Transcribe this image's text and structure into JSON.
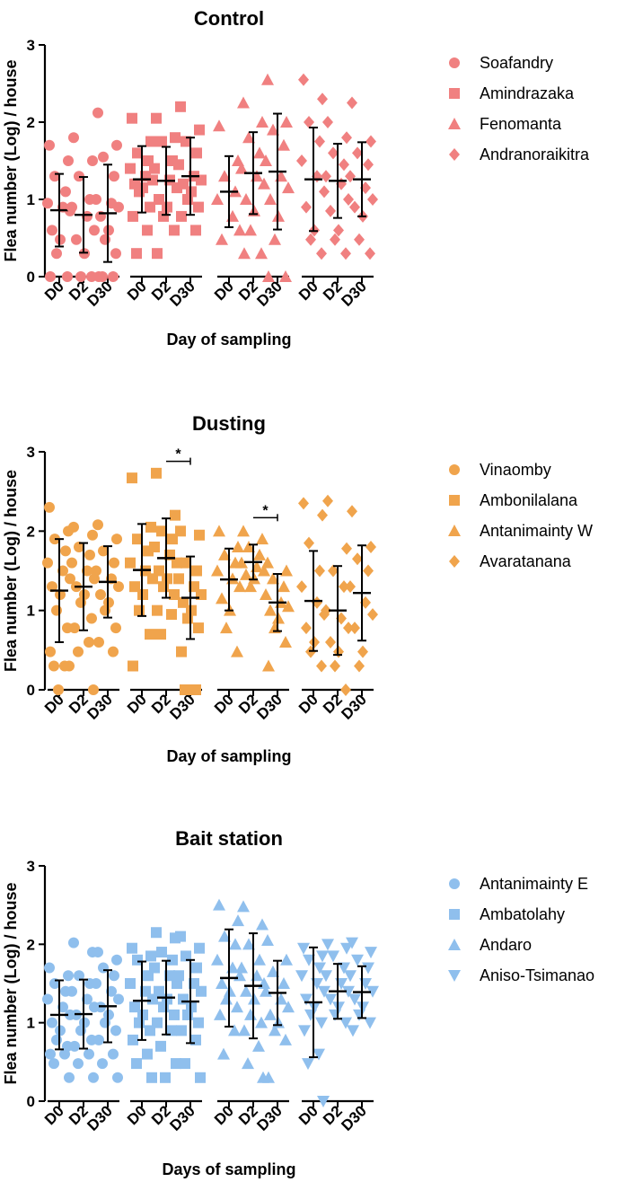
{
  "chart_data": [
    {
      "type": "scatter",
      "title": "Control",
      "xlabel": "Day of sampling",
      "ylabel": "Flea number (Log) / house",
      "ylim": [
        0,
        3
      ],
      "yticks": [
        "0",
        "1",
        "2",
        "3"
      ],
      "categories": [
        "D0",
        "D2",
        "D30"
      ],
      "color": "#f08080",
      "significance": [],
      "groups": [
        {
          "name": "Soafandry",
          "marker": "circle",
          "points": [
            [
              1.7,
              1.5,
              1.3,
              1.1,
              0.95,
              0.9,
              0.85,
              0.6,
              0.48,
              0.3,
              0.0,
              0.0
            ],
            [
              1.8,
              1.5,
              1.3,
              1.0,
              0.9,
              0.78,
              0.6,
              0.48,
              0.3,
              0.0,
              0.0
            ],
            [
              2.12,
              1.7,
              1.55,
              1.3,
              1.0,
              0.95,
              0.9,
              0.78,
              0.6,
              0.48,
              0.3,
              0.0,
              0.0,
              0.0
            ]
          ],
          "mean": [
            0.86,
            0.8,
            0.82
          ],
          "sd": [
            0.47,
            0.49,
            0.63
          ]
        },
        {
          "name": "Amindrazaka",
          "marker": "square",
          "points": [
            [
              2.05,
              1.75,
              1.6,
              1.5,
              1.4,
              1.3,
              1.25,
              1.2,
              1.15,
              1.1,
              0.9,
              0.78,
              0.6,
              0.3
            ],
            [
              2.05,
              1.8,
              1.75,
              1.5,
              1.4,
              1.25,
              1.15,
              1.0,
              0.9,
              0.78,
              0.6,
              0.3
            ],
            [
              2.2,
              1.9,
              1.75,
              1.6,
              1.45,
              1.3,
              1.25,
              1.2,
              1.1,
              1.0,
              0.9,
              0.78,
              0.6
            ]
          ],
          "mean": [
            1.26,
            1.24,
            1.3
          ],
          "sd": [
            0.43,
            0.44,
            0.5
          ]
        },
        {
          "name": "Fenomanta",
          "marker": "triangle",
          "points": [
            [
              1.95,
              1.5,
              1.3,
              1.1,
              1.0,
              0.78,
              0.6,
              0.48
            ],
            [
              2.25,
              2.0,
              1.8,
              1.6,
              1.4,
              1.3,
              1.2,
              1.0,
              0.85,
              0.6,
              0.3,
              0.3
            ],
            [
              2.55,
              2.0,
              1.9,
              1.7,
              1.5,
              1.3,
              1.15,
              1.0,
              0.78,
              0.48,
              0.0,
              0.0
            ]
          ],
          "mean": [
            1.1,
            1.34,
            1.36
          ],
          "sd": [
            0.46,
            0.53,
            0.75
          ]
        },
        {
          "name": "Andranoraikitra",
          "marker": "diamond",
          "points": [
            [
              2.55,
              2.3,
              2.0,
              1.75,
              1.5,
              1.3,
              1.1,
              0.9,
              0.6,
              0.48,
              0.3
            ],
            [
              2.0,
              1.8,
              1.6,
              1.45,
              1.3,
              1.2,
              1.0,
              0.85,
              0.6,
              0.48,
              0.3
            ],
            [
              2.25,
              1.75,
              1.6,
              1.45,
              1.3,
              1.15,
              1.0,
              0.9,
              0.78,
              0.48,
              0.3
            ]
          ],
          "mean": [
            1.26,
            1.24,
            1.26
          ],
          "sd": [
            0.67,
            0.48,
            0.48
          ]
        }
      ]
    },
    {
      "type": "scatter",
      "title": "Dusting",
      "xlabel": "Day of sampling",
      "ylabel": "Flea number (Log) / house",
      "ylim": [
        0,
        3
      ],
      "yticks": [
        "0",
        "1",
        "2",
        "3"
      ],
      "categories": [
        "D0",
        "D2",
        "D30"
      ],
      "color": "#f0a44c",
      "significance": [
        {
          "group": 1,
          "from": 1,
          "to": 2,
          "y": 2.88,
          "label": "*"
        },
        {
          "group": 2,
          "from": 1,
          "to": 2,
          "y": 2.17,
          "label": "*"
        }
      ],
      "groups": [
        {
          "name": "Vinaomby",
          "marker": "circle",
          "points": [
            [
              2.3,
              2.0,
              1.9,
              1.75,
              1.6,
              1.5,
              1.4,
              1.3,
              1.2,
              1.0,
              0.78,
              0.48,
              0.3,
              0.3,
              0.3,
              0.0
            ],
            [
              2.05,
              1.95,
              1.8,
              1.7,
              1.6,
              1.5,
              1.4,
              1.3,
              1.2,
              1.1,
              0.9,
              0.78,
              0.6,
              0.48,
              0.0
            ],
            [
              2.08,
              1.9,
              1.75,
              1.6,
              1.5,
              1.4,
              1.3,
              1.2,
              1.1,
              1.0,
              0.78,
              0.6,
              0.48
            ]
          ],
          "mean": [
            1.25,
            1.3,
            1.36
          ],
          "sd": [
            0.65,
            0.55,
            0.45
          ]
        },
        {
          "name": "Ambonilalana",
          "marker": "square",
          "points": [
            [
              2.67,
              2.05,
              1.9,
              1.75,
              1.6,
              1.5,
              1.4,
              1.3,
              1.2,
              1.0,
              0.7,
              0.3
            ],
            [
              2.73,
              2.2,
              2.0,
              1.9,
              1.8,
              1.7,
              1.6,
              1.5,
              1.4,
              1.3,
              1.2,
              1.0,
              0.95,
              0.7
            ],
            [
              2.0,
              1.95,
              1.6,
              1.5,
              1.4,
              1.3,
              1.2,
              1.1,
              1.0,
              0.9,
              0.78,
              0.48,
              0.0,
              0.0
            ]
          ],
          "mean": [
            1.51,
            1.66,
            1.16
          ],
          "sd": [
            0.58,
            0.5,
            0.52
          ]
        },
        {
          "name": "Antanimainty W",
          "marker": "triangle",
          "points": [
            [
              2.0,
              1.8,
              1.7,
              1.6,
              1.5,
              1.4,
              1.3,
              1.15,
              1.0,
              0.78,
              0.48
            ],
            [
              2.0,
              1.9,
              1.8,
              1.7,
              1.6,
              1.55,
              1.5,
              1.45,
              1.4,
              1.3
            ],
            [
              1.6,
              1.5,
              1.4,
              1.3,
              1.2,
              1.1,
              1.05,
              1.0,
              0.9,
              0.78,
              0.6,
              0.3
            ]
          ],
          "mean": [
            1.39,
            1.61,
            1.1
          ],
          "sd": [
            0.39,
            0.22,
            0.36
          ]
        },
        {
          "name": "Avaratanana",
          "marker": "diamond",
          "points": [
            [
              2.35,
              2.2,
              1.85,
              1.5,
              1.3,
              1.1,
              0.95,
              0.78,
              0.6,
              0.48,
              0.3
            ],
            [
              2.38,
              1.78,
              1.5,
              1.3,
              1.0,
              0.9,
              0.78,
              0.6,
              0.48,
              0.3,
              0.0
            ],
            [
              2.25,
              1.8,
              1.65,
              1.5,
              1.3,
              1.1,
              0.95,
              0.78,
              0.48,
              0.3
            ]
          ],
          "mean": [
            1.12,
            1.0,
            1.22
          ],
          "sd": [
            0.63,
            0.56,
            0.6
          ]
        }
      ]
    },
    {
      "type": "scatter",
      "title": "Bait station",
      "xlabel": "Days of sampling",
      "ylabel": "Flea number (Log) / house",
      "ylim": [
        0,
        3
      ],
      "yticks": [
        "0",
        "1",
        "2",
        "3"
      ],
      "categories": [
        "D0",
        "D2",
        "D30"
      ],
      "color": "#8fbfed",
      "significance": [],
      "groups": [
        {
          "name": "Antanimainty E",
          "marker": "circle",
          "points": [
            [
              1.7,
              1.6,
              1.5,
              1.4,
              1.3,
              1.2,
              1.1,
              1.0,
              0.9,
              0.78,
              0.7,
              0.6,
              0.6,
              0.48,
              0.3
            ],
            [
              2.02,
              1.9,
              1.6,
              1.5,
              1.4,
              1.3,
              1.2,
              1.1,
              1.0,
              0.9,
              0.78,
              0.7,
              0.6,
              0.48,
              0.3
            ],
            [
              1.9,
              1.8,
              1.7,
              1.6,
              1.5,
              1.4,
              1.3,
              1.2,
              1.1,
              1.0,
              0.9,
              0.78,
              0.6,
              0.48,
              0.3
            ]
          ],
          "mean": [
            1.1,
            1.11,
            1.21
          ],
          "sd": [
            0.44,
            0.44,
            0.46
          ]
        },
        {
          "name": "Ambatolahy",
          "marker": "square",
          "points": [
            [
              1.95,
              1.85,
              1.8,
              1.6,
              1.5,
              1.4,
              1.3,
              1.2,
              1.1,
              1.0,
              0.9,
              0.78,
              0.6,
              0.48,
              0.3
            ],
            [
              2.15,
              2.08,
              1.9,
              1.8,
              1.7,
              1.6,
              1.5,
              1.4,
              1.3,
              1.2,
              1.1,
              1.0,
              0.9,
              0.7,
              0.48,
              0.3
            ],
            [
              2.1,
              1.95,
              1.85,
              1.7,
              1.6,
              1.5,
              1.4,
              1.3,
              1.2,
              1.1,
              1.0,
              0.9,
              0.78,
              0.48,
              0.3
            ]
          ],
          "mean": [
            1.28,
            1.32,
            1.27
          ],
          "sd": [
            0.5,
            0.47,
            0.53
          ]
        },
        {
          "name": "Andaro",
          "marker": "triangle",
          "points": [
            [
              2.5,
              2.3,
              2.1,
              2.0,
              1.8,
              1.7,
              1.6,
              1.5,
              1.4,
              1.3,
              1.2,
              1.1,
              0.9,
              0.6
            ],
            [
              2.48,
              2.25,
              2.0,
              1.8,
              1.7,
              1.6,
              1.5,
              1.4,
              1.3,
              1.1,
              1.0,
              0.9,
              0.7,
              0.48,
              0.3
            ],
            [
              2.05,
              1.8,
              1.65,
              1.5,
              1.4,
              1.3,
              1.2,
              1.1,
              1.0,
              0.9,
              0.78,
              0.3
            ]
          ],
          "mean": [
            1.57,
            1.47,
            1.38
          ],
          "sd": [
            0.62,
            0.67,
            0.41
          ]
        },
        {
          "name": "Aniso-Tsimanao",
          "marker": "triangle-down",
          "points": [
            [
              1.95,
              1.85,
              1.8,
              1.7,
              1.6,
              1.5,
              1.4,
              1.3,
              1.2,
              1.1,
              1.0,
              0.9,
              0.6,
              0.48,
              0.0
            ],
            [
              2.0,
              1.95,
              1.85,
              1.7,
              1.6,
              1.5,
              1.4,
              1.3,
              1.2,
              1.1,
              1.0
            ],
            [
              2.02,
              1.9,
              1.8,
              1.7,
              1.6,
              1.5,
              1.4,
              1.3,
              1.2,
              1.1,
              1.0,
              0.9
            ]
          ],
          "mean": [
            1.26,
            1.4,
            1.39
          ],
          "sd": [
            0.7,
            0.35,
            0.33
          ]
        }
      ]
    }
  ]
}
